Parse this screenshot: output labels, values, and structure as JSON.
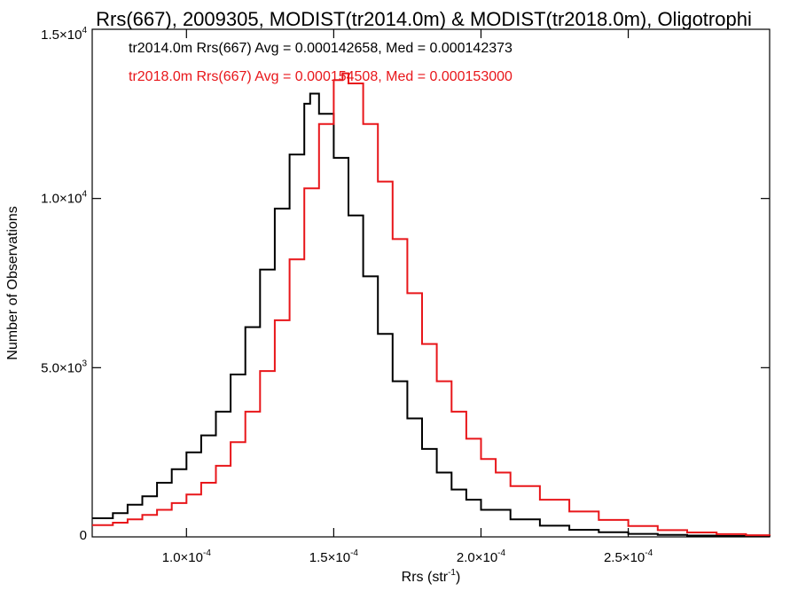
{
  "chart_data": {
    "type": "line",
    "title": "Rrs(667), 2009305, MODIST(tr2014.0m) & MODIST(tr2018.0m), Oligotrophi",
    "xlabel": {
      "base": "Rrs (str",
      "sup": "-1",
      "end": ")"
    },
    "ylabel": "Number of Observations",
    "xlim": [
      6.8e-05,
      0.000298
    ],
    "ylim": [
      0,
      15000
    ],
    "x_ticks": [
      {
        "value": 0.0001,
        "mant": "1.0×10",
        "exp": "-4"
      },
      {
        "value": 0.00015,
        "mant": "1.5×10",
        "exp": "-4"
      },
      {
        "value": 0.0002,
        "mant": "2.0×10",
        "exp": "-4"
      },
      {
        "value": 0.00025,
        "mant": "2.5×10",
        "exp": "-4"
      }
    ],
    "y_ticks": [
      {
        "value": 0,
        "mant": "0",
        "exp": ""
      },
      {
        "value": 5000,
        "mant": "5.0×10",
        "exp": "3"
      },
      {
        "value": 10000,
        "mant": "1.0×10",
        "exp": "4"
      },
      {
        "value": 15000,
        "mant": "1.5×10",
        "exp": "4"
      }
    ],
    "annotations": [
      {
        "text": "tr2014.0m Rrs(667) Avg = 0.000142658, Med = 0.000142373",
        "color": "#000000"
      },
      {
        "text": "tr2018.0m Rrs(667) Avg = 0.000154508, Med = 0.000153000",
        "color": "#e8161a"
      }
    ],
    "grid": false,
    "series": [
      {
        "name": "tr2014.0m",
        "color": "#000000",
        "step": true,
        "x": [
          6.8e-05,
          7.5e-05,
          8e-05,
          8.5e-05,
          9e-05,
          9.5e-05,
          0.0001,
          0.000105,
          0.00011,
          0.000115,
          0.00012,
          0.000125,
          0.00013,
          0.000135,
          0.00014,
          0.000142,
          0.000145,
          0.00015,
          0.000155,
          0.00016,
          0.000165,
          0.00017,
          0.000175,
          0.00018,
          0.000185,
          0.00019,
          0.000195,
          0.0002,
          0.00021,
          0.00022,
          0.00023,
          0.00024,
          0.00025,
          0.00026,
          0.00027,
          0.00028,
          0.00029,
          0.000298
        ],
        "y": [
          550,
          700,
          950,
          1200,
          1600,
          2000,
          2500,
          3000,
          3700,
          4800,
          6200,
          7900,
          9700,
          11300,
          12800,
          13100,
          12500,
          11200,
          9500,
          7700,
          6000,
          4600,
          3500,
          2600,
          1900,
          1400,
          1100,
          800,
          520,
          330,
          210,
          140,
          90,
          60,
          40,
          25,
          15,
          10
        ]
      },
      {
        "name": "tr2018.0m",
        "color": "#e8161a",
        "step": true,
        "x": [
          6.8e-05,
          7.5e-05,
          8e-05,
          8.5e-05,
          9e-05,
          9.5e-05,
          0.0001,
          0.000105,
          0.00011,
          0.000115,
          0.00012,
          0.000125,
          0.00013,
          0.000135,
          0.00014,
          0.000145,
          0.00015,
          0.000153,
          0.000155,
          0.00016,
          0.000165,
          0.00017,
          0.000175,
          0.00018,
          0.000185,
          0.00019,
          0.000195,
          0.0002,
          0.000205,
          0.00021,
          0.00022,
          0.00023,
          0.00024,
          0.00025,
          0.00026,
          0.00027,
          0.00028,
          0.00029,
          0.000298
        ],
        "y": [
          350,
          420,
          520,
          650,
          800,
          1000,
          1250,
          1600,
          2100,
          2800,
          3700,
          4900,
          6400,
          8200,
          10300,
          12200,
          13500,
          13700,
          13400,
          12200,
          10500,
          8800,
          7200,
          5700,
          4600,
          3700,
          2900,
          2300,
          1900,
          1500,
          1100,
          750,
          500,
          320,
          200,
          130,
          80,
          50,
          40
        ]
      }
    ]
  }
}
